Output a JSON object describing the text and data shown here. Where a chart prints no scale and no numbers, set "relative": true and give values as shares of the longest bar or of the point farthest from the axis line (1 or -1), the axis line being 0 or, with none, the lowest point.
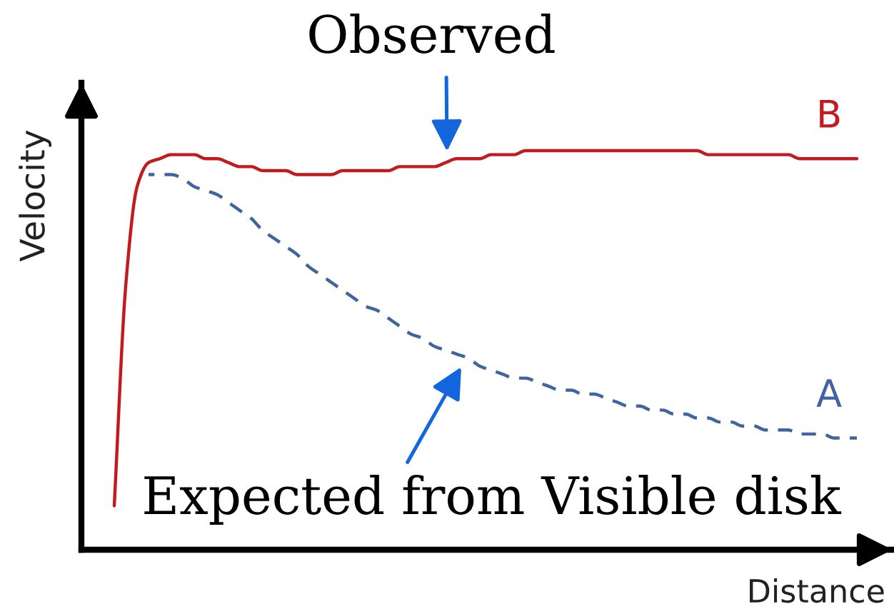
{
  "chart_data": {
    "type": "line",
    "xlabel": "Distance",
    "ylabel": "Velocity",
    "relative": true,
    "categories": [
      null,
      null,
      null,
      null,
      null,
      null,
      null,
      null,
      null,
      null,
      null,
      null,
      null,
      null,
      null,
      null,
      null,
      null,
      null,
      null,
      null,
      null,
      null,
      null,
      null,
      null,
      null,
      null,
      null,
      null,
      null,
      null,
      null,
      null,
      null,
      null,
      null,
      null,
      null,
      null,
      null,
      null,
      null,
      null,
      null,
      null,
      null,
      null,
      null,
      null,
      null,
      null,
      null,
      null,
      null,
      null,
      null,
      null,
      null,
      null,
      null,
      null,
      null,
      null,
      null,
      null
    ],
    "series": [
      {
        "name": "B",
        "color": "#c21a1f",
        "line_style": "solid",
        "values": [
          0.11,
          0.66,
          0.91,
          0.97,
          0.98,
          0.99,
          0.99,
          0.99,
          0.98,
          0.98,
          0.97,
          0.96,
          0.96,
          0.95,
          0.95,
          0.95,
          0.94,
          0.94,
          0.94,
          0.94,
          0.95,
          0.95,
          0.95,
          0.95,
          0.95,
          0.96,
          0.96,
          0.96,
          0.96,
          0.97,
          0.98,
          0.98,
          0.98,
          0.99,
          0.99,
          0.99,
          1.0,
          1.0,
          1.0,
          1.0,
          1.0,
          1.0,
          1.0,
          1.0,
          1.0,
          1.0,
          1.0,
          1.0,
          1.0,
          1.0,
          1.0,
          1.0,
          0.99,
          0.99,
          0.99,
          0.99,
          0.99,
          0.99,
          0.99,
          0.99,
          0.98,
          0.98,
          0.98,
          0.98,
          0.98,
          0.98
        ]
      },
      {
        "name": "A",
        "color": "#3f64a0",
        "line_style": "dashed",
        "values": [
          null,
          null,
          null,
          0.94,
          0.94,
          0.94,
          0.93,
          0.91,
          0.9,
          0.89,
          0.87,
          0.85,
          0.83,
          0.8,
          0.78,
          0.76,
          0.74,
          0.71,
          0.69,
          0.67,
          0.65,
          0.63,
          0.61,
          0.6,
          0.58,
          0.56,
          0.54,
          0.53,
          0.51,
          0.5,
          0.49,
          0.48,
          0.46,
          0.45,
          0.44,
          0.43,
          0.43,
          0.42,
          0.41,
          0.4,
          0.4,
          0.39,
          0.39,
          0.38,
          0.37,
          0.36,
          0.36,
          0.35,
          0.35,
          0.34,
          0.34,
          0.33,
          0.33,
          0.32,
          0.32,
          0.31,
          0.31,
          0.3,
          0.3,
          0.3,
          0.29,
          0.29,
          0.29,
          0.28,
          0.28,
          0.28
        ]
      }
    ],
    "annotations": [
      "Observed",
      "Expected from Visible disk"
    ]
  }
}
